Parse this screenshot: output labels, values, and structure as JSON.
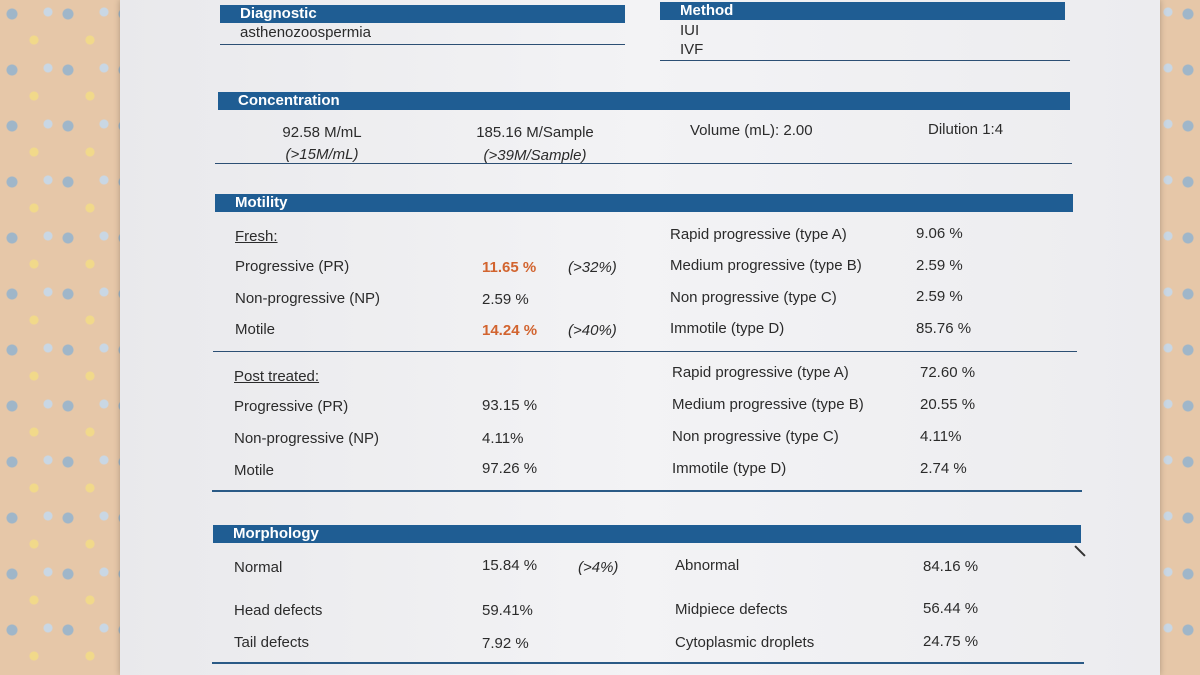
{
  "header": {
    "diagnostic_label": "Diagnostic",
    "diagnostic_value": "asthenozoospermia",
    "method_label": "Method",
    "methods": [
      "IUI",
      "IVF"
    ]
  },
  "concentration": {
    "title": "Concentration",
    "per_ml": "92.58 M/mL",
    "per_ml_ref": "(>15M/mL)",
    "per_sample": "185.16 M/Sample",
    "per_sample_ref": "(>39M/Sample)",
    "volume": "Volume (mL): 2.00",
    "dilution": "Dilution 1:4"
  },
  "motility": {
    "title": "Motility",
    "fresh": {
      "label": "Fresh:",
      "progressive_label": "Progressive (PR)",
      "progressive_value": "11.65 %",
      "progressive_ref": "(>32%)",
      "nonprogressive_label": "Non-progressive (NP)",
      "nonprogressive_value": "2.59 %",
      "motile_label": "Motile",
      "motile_value": "14.24 %",
      "motile_ref": "(>40%)",
      "type_a_label": "Rapid progressive (type A)",
      "type_a_value": "9.06 %",
      "type_b_label": "Medium progressive (type B)",
      "type_b_value": "2.59 %",
      "type_c_label": "Non progressive (type C)",
      "type_c_value": "2.59 %",
      "type_d_label": "Immotile (type D)",
      "type_d_value": "85.76 %"
    },
    "post": {
      "label": "Post treated:",
      "progressive_label": "Progressive (PR)",
      "progressive_value": "93.15 %",
      "nonprogressive_label": "Non-progressive (NP)",
      "nonprogressive_value": "4.11%",
      "motile_label": "Motile",
      "motile_value": "97.26 %",
      "type_a_label": "Rapid progressive (type A)",
      "type_a_value": "72.60 %",
      "type_b_label": "Medium progressive (type B)",
      "type_b_value": "20.55 %",
      "type_c_label": "Non progressive (type C)",
      "type_c_value": "4.11%",
      "type_d_label": "Immotile (type D)",
      "type_d_value": "2.74 %"
    }
  },
  "morphology": {
    "title": "Morphology",
    "normal_label": "Normal",
    "normal_value": "15.84 %",
    "normal_ref": "(>4%)",
    "abnormal_label": "Abnormal",
    "abnormal_value": "84.16 %",
    "head_label": "Head defects",
    "head_value": "59.41%",
    "midpiece_label": "Midpiece defects",
    "midpiece_value": "56.44 %",
    "tail_label": "Tail defects",
    "tail_value": "7.92 %",
    "droplets_label": "Cytoplasmic droplets",
    "droplets_value": "24.75 %"
  },
  "colors": {
    "header_bar": "#1f5d93",
    "flag_text": "#d2642f",
    "rule": "#2c4f74"
  }
}
